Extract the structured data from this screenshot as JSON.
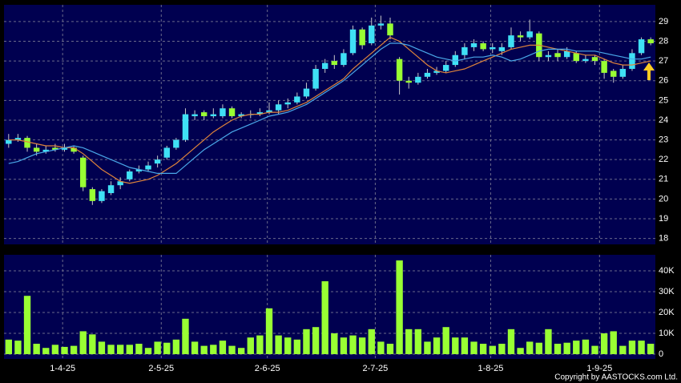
{
  "chart_data": [
    {
      "type": "candlestick",
      "open": [
        22.8,
        23.0,
        23.1,
        22.6,
        22.4,
        22.6,
        22.5,
        22.6,
        22.1,
        20.5,
        19.9,
        20.3,
        20.7,
        21.0,
        21.4,
        21.5,
        21.8,
        22.1,
        22.6,
        23.0,
        24.2,
        24.4,
        24.2,
        24.2,
        24.6,
        24.2,
        24.3,
        24.3,
        24.4,
        24.5,
        24.8,
        24.9,
        25.2,
        25.6,
        26.6,
        27.0,
        26.8,
        27.4,
        28.6,
        27.9,
        28.8,
        28.9,
        27.1,
        26.0,
        25.9,
        26.2,
        26.4,
        26.5,
        26.8,
        27.3,
        27.7,
        27.9,
        27.6,
        27.5,
        27.7,
        28.3,
        28.2,
        28.4,
        27.2,
        27.4,
        27.2,
        27.4,
        27.0,
        27.2,
        27.0,
        26.5,
        26.2,
        26.6,
        27.4,
        28.1
      ],
      "high": [
        23.3,
        23.3,
        23.2,
        22.8,
        22.7,
        22.8,
        22.8,
        22.7,
        22.2,
        20.6,
        20.5,
        20.9,
        21.1,
        21.5,
        21.7,
        21.9,
        22.2,
        22.7,
        23.1,
        24.6,
        24.5,
        24.5,
        24.6,
        24.8,
        24.7,
        24.4,
        24.5,
        24.6,
        24.9,
        25.0,
        25.1,
        25.4,
        25.9,
        26.8,
        27.1,
        27.3,
        27.6,
        28.8,
        28.7,
        29.2,
        29.3,
        29.2,
        27.2,
        26.2,
        26.4,
        26.6,
        26.7,
        27.0,
        27.5,
        27.9,
        28.1,
        28.0,
        27.9,
        27.9,
        28.7,
        28.5,
        29.1,
        28.5,
        27.5,
        27.6,
        27.7,
        27.5,
        27.3,
        27.3,
        27.1,
        26.6,
        26.8,
        27.6,
        28.2,
        28.2
      ],
      "low": [
        22.6,
        22.9,
        22.4,
        22.2,
        22.3,
        22.4,
        22.4,
        22.3,
        20.4,
        19.7,
        19.8,
        20.2,
        20.5,
        20.9,
        21.3,
        21.4,
        21.6,
        22.0,
        22.5,
        22.9,
        24.0,
        24.0,
        24.1,
        24.1,
        24.1,
        24.1,
        24.1,
        24.2,
        24.3,
        24.3,
        24.6,
        24.8,
        25.1,
        25.5,
        26.4,
        26.6,
        26.7,
        27.3,
        27.6,
        27.8,
        28.6,
        28.1,
        25.3,
        25.6,
        25.8,
        26.1,
        26.3,
        26.4,
        26.7,
        27.1,
        27.5,
        27.5,
        27.4,
        27.3,
        27.6,
        28.0,
        28.1,
        27.0,
        27.0,
        27.0,
        27.1,
        26.9,
        26.9,
        26.8,
        26.1,
        25.9,
        26.1,
        26.5,
        27.3,
        27.8
      ],
      "close": [
        23.0,
        23.1,
        22.6,
        22.4,
        22.5,
        22.5,
        22.6,
        22.4,
        20.6,
        19.9,
        20.4,
        20.7,
        20.9,
        21.4,
        21.5,
        21.7,
        22.0,
        22.6,
        23.0,
        24.3,
        24.3,
        24.2,
        24.3,
        24.6,
        24.2,
        24.3,
        24.3,
        24.4,
        24.5,
        24.8,
        24.9,
        25.2,
        25.6,
        26.6,
        26.9,
        26.8,
        27.4,
        28.6,
        27.8,
        28.8,
        28.9,
        28.3,
        26.0,
        25.9,
        26.2,
        26.4,
        26.5,
        26.8,
        27.3,
        27.7,
        27.9,
        27.6,
        27.7,
        27.7,
        28.3,
        28.2,
        28.5,
        27.2,
        27.3,
        27.2,
        27.5,
        27.0,
        27.1,
        27.0,
        26.4,
        26.2,
        26.6,
        27.4,
        28.1,
        27.9
      ],
      "up_color": "#3fe0f5",
      "down_color": "#99ff33",
      "series": [
        {
          "color": "#e0843a",
          "values": [
            23.0,
            23.0,
            22.9,
            22.8,
            22.7,
            22.7,
            22.6,
            22.6,
            22.3,
            21.9,
            21.5,
            21.2,
            20.9,
            20.8,
            20.9,
            21.0,
            21.2,
            21.5,
            21.8,
            22.2,
            22.6,
            23.0,
            23.4,
            23.7,
            24.0,
            24.2,
            24.3,
            24.3,
            24.4,
            24.4,
            24.5,
            24.7,
            24.9,
            25.2,
            25.5,
            25.8,
            26.1,
            26.6,
            27.0,
            27.4,
            27.8,
            28.2,
            28.0,
            27.6,
            27.2,
            26.8,
            26.5,
            26.4,
            26.5,
            26.6,
            26.8,
            27.0,
            27.2,
            27.4,
            27.6,
            27.7,
            27.8,
            27.8,
            27.7,
            27.6,
            27.5,
            27.4,
            27.3,
            27.3,
            27.1,
            26.9,
            26.8,
            26.8,
            26.9,
            27.0
          ]
        },
        {
          "color": "#4aa8e8",
          "values": [
            21.8,
            21.9,
            22.1,
            22.3,
            22.4,
            22.5,
            22.6,
            22.7,
            22.6,
            22.4,
            22.2,
            22.0,
            21.8,
            21.6,
            21.5,
            21.4,
            21.3,
            21.3,
            21.3,
            21.7,
            22.1,
            22.5,
            22.8,
            23.1,
            23.4,
            23.6,
            23.8,
            24.0,
            24.2,
            24.3,
            24.4,
            24.6,
            24.8,
            25.1,
            25.4,
            25.7,
            26.0,
            26.4,
            26.8,
            27.2,
            27.6,
            27.9,
            27.9,
            27.8,
            27.6,
            27.4,
            27.2,
            27.1,
            27.0,
            27.1,
            27.2,
            27.2,
            27.3,
            27.2,
            27.0,
            27.1,
            27.3,
            27.5,
            27.6,
            27.6,
            27.6,
            27.5,
            27.5,
            27.5,
            27.4,
            27.3,
            27.2,
            27.1,
            27.1,
            27.2
          ]
        }
      ],
      "ylim": [
        17.7,
        29.85
      ],
      "yticks": [
        18,
        19,
        20,
        21,
        22,
        23,
        24,
        25,
        26,
        27,
        28,
        29
      ],
      "grid": true
    },
    {
      "type": "bar",
      "color": "#99ff33",
      "values": [
        7000,
        6500,
        28000,
        5000,
        3000,
        4500,
        3500,
        4000,
        11000,
        9500,
        6000,
        4500,
        4500,
        4500,
        5000,
        3000,
        6000,
        5500,
        7000,
        17000,
        6000,
        4000,
        4500,
        6500,
        4000,
        3000,
        8000,
        9000,
        22000,
        9000,
        8000,
        7000,
        12000,
        13000,
        35000,
        10000,
        8000,
        9000,
        8000,
        12000,
        6000,
        5000,
        45000,
        12000,
        12000,
        6000,
        8000,
        13000,
        8000,
        8000,
        6000,
        5000,
        4000,
        5000,
        12000,
        3000,
        6000,
        5500,
        12000,
        5000,
        5500,
        6500,
        7000,
        4000,
        10000,
        11000,
        4000,
        6500,
        6500,
        5000
      ],
      "ylim": [
        -2300,
        47700
      ],
      "yticks": [
        0,
        {
          "value": 10000,
          "label": "10K"
        },
        {
          "value": 20000,
          "label": "20K"
        },
        {
          "value": 30000,
          "label": "30K"
        },
        {
          "value": 40000,
          "label": "40K"
        }
      ],
      "xlim": [
        -0.5,
        69.5
      ],
      "xticks": [
        {
          "value": 5.8,
          "label": "1-4-25"
        },
        {
          "value": 16.4,
          "label": "2-5-25"
        },
        {
          "value": 27.8,
          "label": "2-6-25"
        },
        {
          "value": 39.4,
          "label": "2-7-25"
        },
        {
          "value": 51.8,
          "label": "1-8-25"
        },
        {
          "value": 63.5,
          "label": "1-9-25"
        }
      ],
      "grid": true,
      "copyright": "Copyright by AASTOCKS.com Ltd."
    }
  ]
}
